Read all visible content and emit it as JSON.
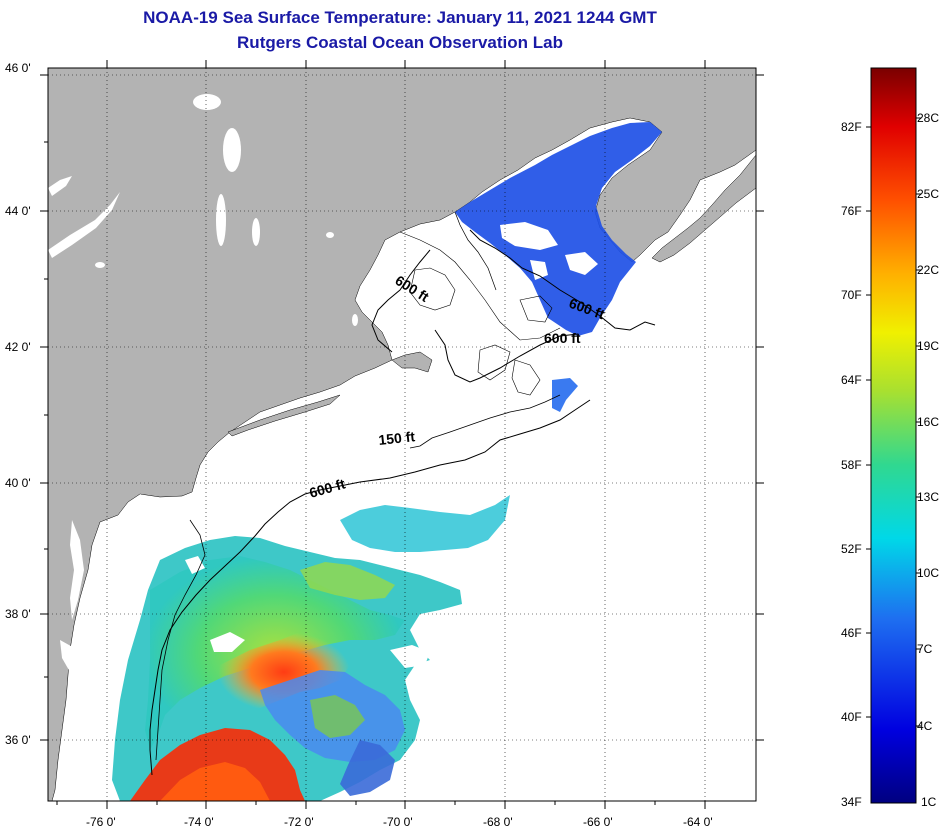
{
  "title": {
    "line1": "NOAA-19 Sea Surface Temperature:  January 11, 2021 1244 GMT",
    "line2": "Rutgers Coastal Ocean Observation Lab"
  },
  "axes": {
    "lat_labels": [
      "46 0'",
      "44 0'",
      "42 0'",
      "40 0'",
      "38 0'",
      "36 0'"
    ],
    "lon_labels": [
      "-76 0'",
      "-74 0'",
      "-72 0'",
      "-70 0'",
      "-68 0'",
      "-66 0'",
      "-64 0'"
    ]
  },
  "contours": {
    "labels": [
      "600 ft",
      "600 ft",
      "600 ft",
      "150 ft",
      "600 ft"
    ]
  },
  "colorbar": {
    "fahrenheit": [
      "82F",
      "76F",
      "70F",
      "64F",
      "58F",
      "52F",
      "46F",
      "40F",
      "34F"
    ],
    "celsius": [
      "28C",
      "25C",
      "22C",
      "19C",
      "16C",
      "13C",
      "10C",
      "7C",
      "4C",
      "1C"
    ]
  },
  "colors": {
    "land": "#b3b3b3",
    "ocean": "#ffffff",
    "title": "#1a1aa6",
    "sst_cold": "#1e50e6",
    "sst_warm": "#e63214"
  }
}
